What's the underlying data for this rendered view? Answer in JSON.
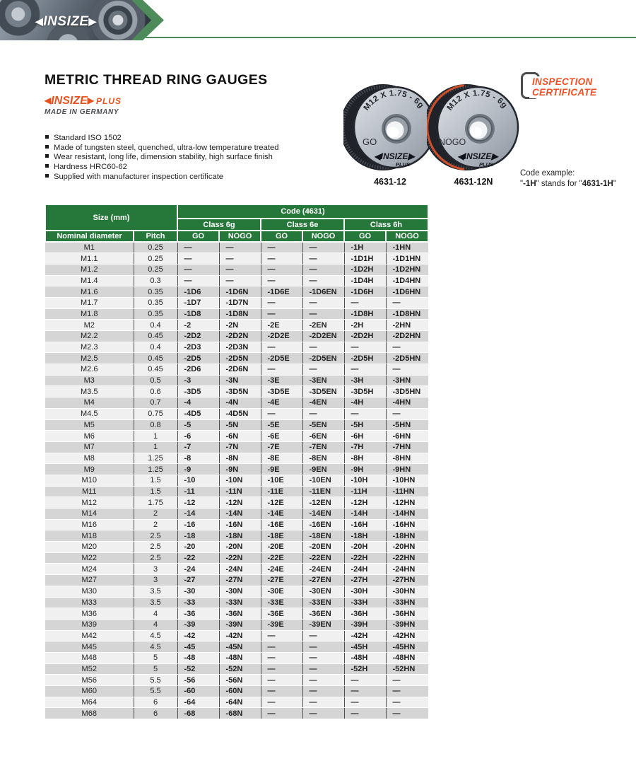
{
  "banner": {
    "arrow_left": "◀",
    "logo": "INSIZE",
    "arrow_right": "▶"
  },
  "header": {
    "title": "METRIC THREAD RING GAUGES",
    "brand": {
      "arrow_left": "◀",
      "name": "INSIZE",
      "arrow_right": "▶",
      "plus": "PLUS",
      "origin": "MADE IN GERMANY"
    },
    "features": [
      "Standard ISO 1502",
      "Made of tungsten steel, quenched, ultra-low temperature treated",
      "Wear resistant, long life, dimension stability, high surface finish",
      "Hardness HRC60-62",
      "Supplied with manufacturer inspection certificate"
    ],
    "certificate": {
      "line1": "INSPECTION",
      "line2": "CERTIFICATE"
    },
    "code_example": {
      "label": "Code example:",
      "q1": "\"",
      "code1": "-1H",
      "mid": "\" stands for \"",
      "code2": "4631-1H",
      "q2": "\""
    }
  },
  "products": [
    {
      "marking": "M12 X 1.75 - 6g",
      "type": "GO",
      "logo": "◀INSIZE▶",
      "logo_sub": "PLUS",
      "code": "4631-12"
    },
    {
      "marking": "M12 X 1.75 - 6g",
      "type": "NOGO",
      "logo": "◀INSIZE▶",
      "logo_sub": "PLUS",
      "code": "4631-12N"
    }
  ],
  "table": {
    "headers": {
      "size_group": "Size (mm)",
      "code_group": "Code (4631)",
      "class_6g": "Class 6g",
      "class_6e": "Class 6e",
      "class_6h": "Class 6h",
      "nominal": "Nominal diameter",
      "pitch": "Pitch",
      "go": "GO",
      "nogo": "NOGO"
    },
    "rows": [
      [
        "M1",
        "0.25",
        "—",
        "—",
        "—",
        "—",
        "-1H",
        "-1HN"
      ],
      [
        "M1.1",
        "0.25",
        "—",
        "—",
        "—",
        "—",
        "-1D1H",
        "-1D1HN"
      ],
      [
        "M1.2",
        "0.25",
        "—",
        "—",
        "—",
        "—",
        "-1D2H",
        "-1D2HN"
      ],
      [
        "M1.4",
        "0.3",
        "—",
        "—",
        "—",
        "—",
        "-1D4H",
        "-1D4HN"
      ],
      [
        "M1.6",
        "0.35",
        "-1D6",
        "-1D6N",
        "-1D6E",
        "-1D6EN",
        "-1D6H",
        "-1D6HN"
      ],
      [
        "M1.7",
        "0.35",
        "-1D7",
        "-1D7N",
        "—",
        "—",
        "—",
        "—"
      ],
      [
        "M1.8",
        "0.35",
        "-1D8",
        "-1D8N",
        "—",
        "—",
        "-1D8H",
        "-1D8HN"
      ],
      [
        "M2",
        "0.4",
        "-2",
        "-2N",
        "-2E",
        "-2EN",
        "-2H",
        "-2HN"
      ],
      [
        "M2.2",
        "0.45",
        "-2D2",
        "-2D2N",
        "-2D2E",
        "-2D2EN",
        "-2D2H",
        "-2D2HN"
      ],
      [
        "M2.3",
        "0.4",
        "-2D3",
        "-2D3N",
        "—",
        "—",
        "—",
        "—"
      ],
      [
        "M2.5",
        "0.45",
        "-2D5",
        "-2D5N",
        "-2D5E",
        "-2D5EN",
        "-2D5H",
        "-2D5HN"
      ],
      [
        "M2.6",
        "0.45",
        "-2D6",
        "-2D6N",
        "—",
        "—",
        "—",
        "—"
      ],
      [
        "M3",
        "0.5",
        "-3",
        "-3N",
        "-3E",
        "-3EN",
        "-3H",
        "-3HN"
      ],
      [
        "M3.5",
        "0.6",
        "-3D5",
        "-3D5N",
        "-3D5E",
        "-3D5EN",
        "-3D5H",
        "-3D5HN"
      ],
      [
        "M4",
        "0.7",
        "-4",
        "-4N",
        "-4E",
        "-4EN",
        "-4H",
        "-4HN"
      ],
      [
        "M4.5",
        "0.75",
        "-4D5",
        "-4D5N",
        "—",
        "—",
        "—",
        "—"
      ],
      [
        "M5",
        "0.8",
        "-5",
        "-5N",
        "-5E",
        "-5EN",
        "-5H",
        "-5HN"
      ],
      [
        "M6",
        "1",
        "-6",
        "-6N",
        "-6E",
        "-6EN",
        "-6H",
        "-6HN"
      ],
      [
        "M7",
        "1",
        "-7",
        "-7N",
        "-7E",
        "-7EN",
        "-7H",
        "-7HN"
      ],
      [
        "M8",
        "1.25",
        "-8",
        "-8N",
        "-8E",
        "-8EN",
        "-8H",
        "-8HN"
      ],
      [
        "M9",
        "1.25",
        "-9",
        "-9N",
        "-9E",
        "-9EN",
        "-9H",
        "-9HN"
      ],
      [
        "M10",
        "1.5",
        "-10",
        "-10N",
        "-10E",
        "-10EN",
        "-10H",
        "-10HN"
      ],
      [
        "M11",
        "1.5",
        "-11",
        "-11N",
        "-11E",
        "-11EN",
        "-11H",
        "-11HN"
      ],
      [
        "M12",
        "1.75",
        "-12",
        "-12N",
        "-12E",
        "-12EN",
        "-12H",
        "-12HN"
      ],
      [
        "M14",
        "2",
        "-14",
        "-14N",
        "-14E",
        "-14EN",
        "-14H",
        "-14HN"
      ],
      [
        "M16",
        "2",
        "-16",
        "-16N",
        "-16E",
        "-16EN",
        "-16H",
        "-16HN"
      ],
      [
        "M18",
        "2.5",
        "-18",
        "-18N",
        "-18E",
        "-18EN",
        "-18H",
        "-18HN"
      ],
      [
        "M20",
        "2.5",
        "-20",
        "-20N",
        "-20E",
        "-20EN",
        "-20H",
        "-20HN"
      ],
      [
        "M22",
        "2.5",
        "-22",
        "-22N",
        "-22E",
        "-22EN",
        "-22H",
        "-22HN"
      ],
      [
        "M24",
        "3",
        "-24",
        "-24N",
        "-24E",
        "-24EN",
        "-24H",
        "-24HN"
      ],
      [
        "M27",
        "3",
        "-27",
        "-27N",
        "-27E",
        "-27EN",
        "-27H",
        "-27HN"
      ],
      [
        "M30",
        "3.5",
        "-30",
        "-30N",
        "-30E",
        "-30EN",
        "-30H",
        "-30HN"
      ],
      [
        "M33",
        "3.5",
        "-33",
        "-33N",
        "-33E",
        "-33EN",
        "-33H",
        "-33HN"
      ],
      [
        "M36",
        "4",
        "-36",
        "-36N",
        "-36E",
        "-36EN",
        "-36H",
        "-36HN"
      ],
      [
        "M39",
        "4",
        "-39",
        "-39N",
        "-39E",
        "-39EN",
        "-39H",
        "-39HN"
      ],
      [
        "M42",
        "4.5",
        "-42",
        "-42N",
        "—",
        "—",
        "-42H",
        "-42HN"
      ],
      [
        "M45",
        "4.5",
        "-45",
        "-45N",
        "—",
        "—",
        "-45H",
        "-45HN"
      ],
      [
        "M48",
        "5",
        "-48",
        "-48N",
        "—",
        "—",
        "-48H",
        "-48HN"
      ],
      [
        "M52",
        "5",
        "-52",
        "-52N",
        "—",
        "—",
        "-52H",
        "-52HN"
      ],
      [
        "M56",
        "5.5",
        "-56",
        "-56N",
        "—",
        "—",
        "—",
        "—"
      ],
      [
        "M60",
        "5.5",
        "-60",
        "-60N",
        "—",
        "—",
        "—",
        "—"
      ],
      [
        "M64",
        "6",
        "-64",
        "-64N",
        "—",
        "—",
        "—",
        "—"
      ],
      [
        "M68",
        "6",
        "-68",
        "-68N",
        "—",
        "—",
        "—",
        "—"
      ]
    ]
  },
  "colors": {
    "brand_green": "#26783a",
    "line_green": "#4e8b5a",
    "accent_orange": "#e8521f",
    "row_gray": "#d5d5d5",
    "row_light": "#f0f0f0"
  }
}
